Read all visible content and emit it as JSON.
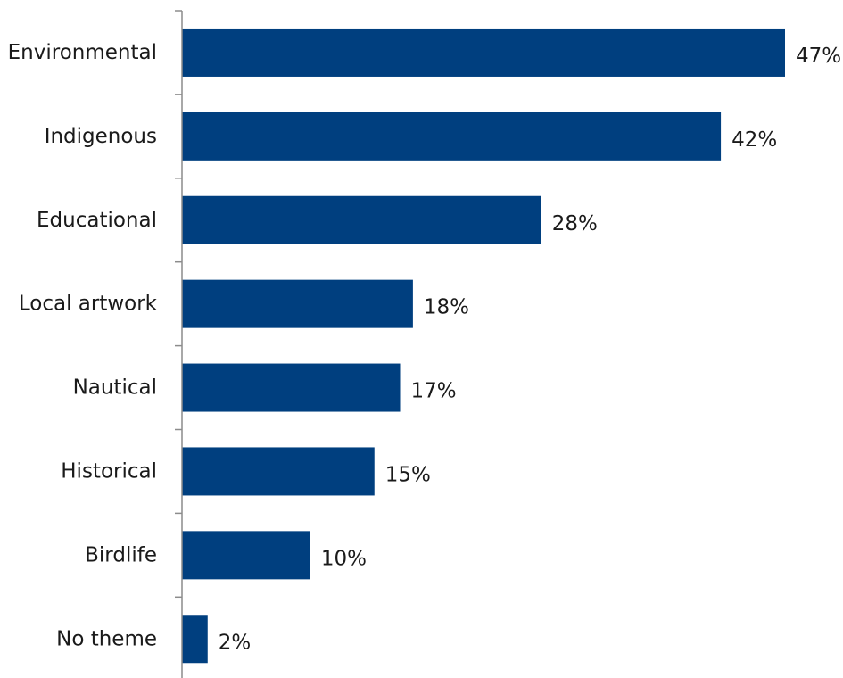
{
  "chart_data": {
    "type": "bar",
    "orientation": "horizontal",
    "categories": [
      "Environmental",
      "Indigenous",
      "Educational",
      "Local artwork",
      "Nautical",
      "Historical",
      "Birdlife",
      "No theme"
    ],
    "values": [
      47,
      42,
      28,
      18,
      17,
      15,
      10,
      2
    ],
    "value_labels": [
      "47%",
      "42%",
      "28%",
      "18%",
      "17%",
      "15%",
      "10%",
      "2%"
    ],
    "unit": "%",
    "title": "",
    "xlabel": "",
    "ylabel": "",
    "xlim": [
      0,
      47
    ],
    "grid": false,
    "legend": "none",
    "bar_color": "#003f7f"
  }
}
